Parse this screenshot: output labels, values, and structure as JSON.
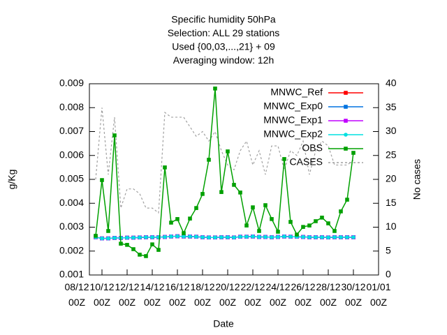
{
  "chart_data": {
    "type": "line",
    "title": [
      "Specific humidity 50hPa",
      "Selection: ALL      29 stations",
      "Used {00,03,...,21} + 09",
      "Averaging window: 12h"
    ],
    "xlabel": "Date",
    "ylabel": "g/Kg",
    "y2label": "No cases",
    "x": [
      1.5,
      2,
      2.5,
      3,
      3.5,
      4,
      4.5,
      5,
      5.5,
      6,
      6.5,
      7,
      7.5,
      8,
      8.5,
      9,
      9.5,
      10,
      10.5,
      11,
      11.5,
      12,
      12.5,
      13,
      13.5,
      14,
      14.5,
      15,
      15.5,
      16,
      16.5,
      17,
      17.5,
      18,
      18.5,
      19,
      19.5,
      20,
      20.5,
      21,
      21.5,
      22
    ],
    "xlim": [
      1,
      24
    ],
    "xticks": [
      {
        "value": 0,
        "label": "08/12 00Z"
      },
      {
        "value": 2,
        "label": "10/12 00Z"
      },
      {
        "value": 4,
        "label": "12/12 00Z"
      },
      {
        "value": 6,
        "label": "14/12 00Z"
      },
      {
        "value": 8,
        "label": "16/12 00Z"
      },
      {
        "value": 10,
        "label": "18/12 00Z"
      },
      {
        "value": 12,
        "label": "20/12 00Z"
      },
      {
        "value": 14,
        "label": "22/12 00Z"
      },
      {
        "value": 16,
        "label": "24/12 00Z"
      },
      {
        "value": 18,
        "label": "26/12 00Z"
      },
      {
        "value": 20,
        "label": "28/12 00Z"
      },
      {
        "value": 22,
        "label": "30/12 00Z"
      },
      {
        "value": 24,
        "label": "01/01 00Z"
      }
    ],
    "ylim": [
      0.001,
      0.009
    ],
    "yticks": [
      0.001,
      0.002,
      0.003,
      0.004,
      0.005,
      0.006,
      0.007,
      0.008,
      0.009
    ],
    "y2lim": [
      0,
      40
    ],
    "y2ticks": [
      0,
      5,
      10,
      15,
      20,
      25,
      30,
      35,
      40
    ],
    "legend": "top-right",
    "series": [
      {
        "name": "MNWC_Ref",
        "color": "#ff0000",
        "marker": "square",
        "values": [
          0.00258,
          0.00253,
          0.00253,
          0.00255,
          0.00255,
          0.00256,
          0.00256,
          0.00257,
          0.00258,
          0.00258,
          0.00258,
          0.00259,
          0.00261,
          0.00262,
          0.00261,
          0.00261,
          0.0026,
          0.00258,
          0.00257,
          0.00257,
          0.00258,
          0.00258,
          0.00257,
          0.0026,
          0.0026,
          0.00261,
          0.00259,
          0.00259,
          0.00258,
          0.00259,
          0.00261,
          0.0026,
          0.0026,
          0.00259,
          0.00258,
          0.00258,
          0.00258,
          0.00257,
          0.00258,
          0.00258,
          0.00258,
          0.00258
        ]
      },
      {
        "name": "MNWC_Exp0",
        "color": "#0072e0",
        "marker": "square",
        "values": [
          0.00258,
          0.00253,
          0.00253,
          0.00255,
          0.00255,
          0.00256,
          0.00256,
          0.00257,
          0.00258,
          0.00258,
          0.00258,
          0.00259,
          0.00261,
          0.00262,
          0.00261,
          0.00261,
          0.0026,
          0.00258,
          0.00257,
          0.00257,
          0.00258,
          0.00258,
          0.00257,
          0.0026,
          0.0026,
          0.00261,
          0.00259,
          0.00259,
          0.00258,
          0.00259,
          0.00261,
          0.0026,
          0.0026,
          0.00259,
          0.00258,
          0.00258,
          0.00258,
          0.00257,
          0.00258,
          0.00258,
          0.00258,
          0.00258
        ]
      },
      {
        "name": "MNWC_Exp1",
        "color": "#c000ff",
        "marker": "square",
        "values": [
          0.00258,
          0.00253,
          0.00253,
          0.00255,
          0.00255,
          0.00256,
          0.00256,
          0.00257,
          0.00258,
          0.00258,
          0.00258,
          0.00259,
          0.00261,
          0.00262,
          0.00261,
          0.00261,
          0.0026,
          0.00258,
          0.00257,
          0.00257,
          0.00258,
          0.00258,
          0.00257,
          0.0026,
          0.0026,
          0.00261,
          0.00259,
          0.00259,
          0.00258,
          0.00259,
          0.00261,
          0.0026,
          0.0026,
          0.00259,
          0.00258,
          0.00258,
          0.00258,
          0.00257,
          0.00258,
          0.00258,
          0.00258,
          0.00258
        ]
      },
      {
        "name": "MNWC_Exp2",
        "color": "#00e0e0",
        "marker": "circle",
        "values": [
          0.00258,
          0.00253,
          0.00253,
          0.00255,
          0.00255,
          0.00256,
          0.00256,
          0.00257,
          0.00258,
          0.00258,
          0.00258,
          0.00259,
          0.00261,
          0.00262,
          0.00261,
          0.00261,
          0.0026,
          0.00258,
          0.00257,
          0.00257,
          0.00258,
          0.00258,
          0.00257,
          0.0026,
          0.0026,
          0.00261,
          0.00259,
          0.00259,
          0.00258,
          0.00259,
          0.00261,
          0.0026,
          0.0026,
          0.00259,
          0.00258,
          0.00258,
          0.00258,
          0.00257,
          0.00258,
          0.00258,
          0.00258,
          0.00258
        ]
      },
      {
        "name": "OBS",
        "color": "#00a000",
        "marker": "square",
        "values": [
          0.00264,
          0.00497,
          0.00284,
          0.00684,
          0.00231,
          0.00226,
          0.00208,
          0.00185,
          0.00179,
          0.00228,
          0.00205,
          0.0055,
          0.00319,
          0.00334,
          0.00275,
          0.00336,
          0.0038,
          0.00439,
          0.00582,
          0.0088,
          0.00447,
          0.00617,
          0.00477,
          0.00445,
          0.00307,
          0.00383,
          0.00284,
          0.00392,
          0.00334,
          0.00281,
          0.00585,
          0.00322,
          0.00269,
          0.00301,
          0.00307,
          0.00325,
          0.0034,
          0.00316,
          0.00284,
          0.00366,
          0.00415,
          0.00611
        ]
      },
      {
        "name": "CASES",
        "color": "#a0a0a0",
        "dashed": true,
        "axis": "y2",
        "values": [
          20,
          35,
          21,
          33,
          14,
          18,
          18,
          17,
          14,
          14,
          13,
          34,
          33,
          33,
          33,
          31,
          29,
          30,
          28,
          30,
          26,
          23,
          22,
          26,
          28,
          23,
          26,
          21,
          27,
          27,
          22,
          26,
          25,
          28,
          21,
          26,
          28,
          27,
          23,
          23,
          23,
          24
        ]
      }
    ]
  }
}
